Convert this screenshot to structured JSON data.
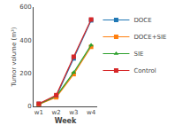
{
  "chart_data": {
    "type": "line",
    "xlabel": "Week",
    "ylabel": "Tumor volume (m³)",
    "x": [
      1,
      2,
      3,
      4
    ],
    "xlim": [
      0.7,
      4.35
    ],
    "xticks": [
      {
        "value": 1,
        "label": "w1"
      },
      {
        "value": 2,
        "label": "w2"
      },
      {
        "value": 3,
        "label": "w3"
      },
      {
        "value": 4,
        "label": "w4"
      }
    ],
    "ylim": [
      0,
      600
    ],
    "yticks": [
      0,
      200,
      400,
      600
    ],
    "grid": false,
    "legend": "right",
    "series": [
      {
        "name": "DOCE",
        "marker": "square",
        "values": [
          15,
          60,
          290,
          520
        ]
      },
      {
        "name": "DOCE+SIE",
        "marker": "square",
        "values": [
          12,
          55,
          195,
          360
        ]
      },
      {
        "name": "SIE",
        "marker": "triangle-up",
        "values": [
          14,
          62,
          205,
          370
        ]
      },
      {
        "name": "Control",
        "marker": "square",
        "values": [
          16,
          68,
          300,
          525
        ]
      }
    ]
  }
}
